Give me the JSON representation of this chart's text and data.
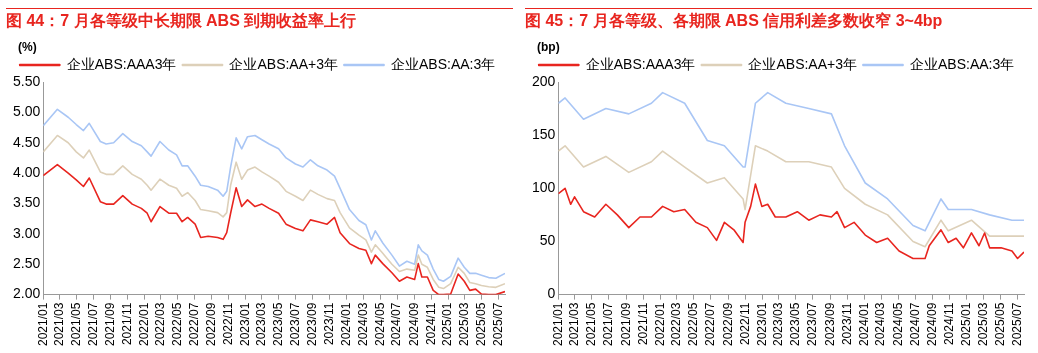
{
  "chart_data": [
    {
      "type": "line",
      "title": "图 44：7 月各等级中长期限 ABS 到期收益率上行",
      "ylabel": "(%)",
      "legend": "top",
      "grid": false,
      "marker": "none",
      "line_style": "solid",
      "x": [
        "2021-01-01",
        "2021-02-21",
        "2021-04-01",
        "2021-04-30",
        "2021-05-26",
        "2021-06-16",
        "2021-07-26",
        "2021-08-16",
        "2021-09-12",
        "2021-10-15",
        "2021-11-18",
        "2021-12-21",
        "2022-01-11",
        "2022-01-25",
        "2022-02-26",
        "2022-03-30",
        "2022-04-27",
        "2022-05-17",
        "2022-06-06",
        "2022-07-03",
        "2022-07-23",
        "2022-08-19",
        "2022-09-22",
        "2022-10-12",
        "2022-10-25",
        "2022-11-08",
        "2022-11-28",
        "2022-12-18",
        "2023-01-08",
        "2023-02-04",
        "2023-03-01",
        "2023-03-27",
        "2023-04-30",
        "2023-05-27",
        "2023-06-30",
        "2023-07-27",
        "2023-08-23",
        "2023-09-19",
        "2023-10-22",
        "2023-11-18",
        "2023-12-08",
        "2024-01-11",
        "2024-02-14",
        "2024-03-10",
        "2024-03-30",
        "2024-04-13",
        "2024-05-10",
        "2024-06-12",
        "2024-07-09",
        "2024-08-05",
        "2024-09-02",
        "2024-09-15",
        "2024-09-28",
        "2024-10-18",
        "2024-11-08",
        "2024-11-28",
        "2024-12-15",
        "2025-01-10",
        "2025-02-06",
        "2025-02-28",
        "2025-03-20",
        "2025-04-10",
        "2025-05-01",
        "2025-05-27",
        "2025-06-22",
        "2025-07-25"
      ],
      "series": [
        {
          "name": "企业ABS:AAA3年",
          "color": "#e8251f",
          "values": [
            3.96,
            4.14,
            4.0,
            3.89,
            3.78,
            3.92,
            3.53,
            3.49,
            3.49,
            3.63,
            3.49,
            3.42,
            3.34,
            3.2,
            3.45,
            3.34,
            3.34,
            3.2,
            3.27,
            3.16,
            2.94,
            2.96,
            2.94,
            2.91,
            3.02,
            3.34,
            3.76,
            3.45,
            3.56,
            3.45,
            3.49,
            3.42,
            3.34,
            3.16,
            3.09,
            3.05,
            3.23,
            3.2,
            3.16,
            3.27,
            3.02,
            2.84,
            2.76,
            2.73,
            2.51,
            2.65,
            2.51,
            2.36,
            2.22,
            2.29,
            2.25,
            2.51,
            2.29,
            2.29,
            2.07,
            2.0,
            2.0,
            2.01,
            2.34,
            2.22,
            2.07,
            2.09,
            2.01,
            2.0,
            2.0,
            2.05
          ]
        },
        {
          "name": "企业ABS:AA+3年",
          "color": "#ddd0b9",
          "values": [
            4.35,
            4.62,
            4.5,
            4.35,
            4.25,
            4.38,
            4.02,
            3.98,
            3.98,
            4.12,
            3.98,
            3.9,
            3.8,
            3.72,
            3.9,
            3.8,
            3.75,
            3.62,
            3.68,
            3.55,
            3.4,
            3.38,
            3.35,
            3.28,
            3.35,
            3.8,
            4.18,
            3.9,
            4.05,
            4.1,
            4.02,
            3.95,
            3.85,
            3.7,
            3.62,
            3.55,
            3.72,
            3.65,
            3.58,
            3.55,
            3.35,
            3.1,
            2.98,
            2.9,
            2.7,
            2.82,
            2.68,
            2.5,
            2.38,
            2.42,
            2.4,
            2.65,
            2.5,
            2.45,
            2.25,
            2.12,
            2.1,
            2.18,
            2.45,
            2.35,
            2.2,
            2.18,
            2.15,
            2.13,
            2.12,
            2.18
          ]
        },
        {
          "name": "企业ABS:AA:3年",
          "color": "#a9c6f5",
          "values": [
            4.78,
            5.05,
            4.92,
            4.8,
            4.7,
            4.82,
            4.52,
            4.48,
            4.5,
            4.65,
            4.52,
            4.45,
            4.35,
            4.28,
            4.52,
            4.38,
            4.3,
            4.12,
            4.12,
            3.95,
            3.8,
            3.78,
            3.72,
            3.62,
            3.7,
            4.1,
            4.58,
            4.4,
            4.6,
            4.62,
            4.55,
            4.48,
            4.4,
            4.25,
            4.15,
            4.1,
            4.22,
            4.12,
            4.05,
            3.95,
            3.75,
            3.4,
            3.22,
            3.15,
            2.9,
            3.05,
            2.85,
            2.65,
            2.47,
            2.55,
            2.5,
            2.82,
            2.72,
            2.65,
            2.42,
            2.25,
            2.22,
            2.3,
            2.6,
            2.45,
            2.35,
            2.35,
            2.32,
            2.28,
            2.27,
            2.35
          ]
        }
      ],
      "xlim": [
        "2021-01-01",
        "2025-07-25"
      ],
      "xticks": [
        {
          "value": "2021-01",
          "label": "2021/01"
        },
        {
          "value": "2021-03",
          "label": "2021/03"
        },
        {
          "value": "2021-05",
          "label": "2021/05"
        },
        {
          "value": "2021-07",
          "label": "2021/07"
        },
        {
          "value": "2021-09",
          "label": "2021/09"
        },
        {
          "value": "2021-11",
          "label": "2021/11"
        },
        {
          "value": "2022-01",
          "label": "2022/01"
        },
        {
          "value": "2022-03",
          "label": "2022/03"
        },
        {
          "value": "2022-05",
          "label": "2022/05"
        },
        {
          "value": "2022-07",
          "label": "2022/07"
        },
        {
          "value": "2022-09",
          "label": "2022/09"
        },
        {
          "value": "2022-11",
          "label": "2022/11"
        },
        {
          "value": "2023-01",
          "label": "2023/01"
        },
        {
          "value": "2023-03",
          "label": "2023/03"
        },
        {
          "value": "2023-05",
          "label": "2023/05"
        },
        {
          "value": "2023-07",
          "label": "2023/07"
        },
        {
          "value": "2023-09",
          "label": "2023/09"
        },
        {
          "value": "2023-11",
          "label": "2023/11"
        },
        {
          "value": "2024-01",
          "label": "2024/01"
        },
        {
          "value": "2024-03",
          "label": "2024/03"
        },
        {
          "value": "2024-05",
          "label": "2024/05"
        },
        {
          "value": "2024-07",
          "label": "2024/07"
        },
        {
          "value": "2024-09",
          "label": "2024/09"
        },
        {
          "value": "2024-11",
          "label": "2024/11"
        },
        {
          "value": "2025-01",
          "label": "2025/01"
        },
        {
          "value": "2025-03",
          "label": "2025/03"
        },
        {
          "value": "2025-05",
          "label": "2025/05"
        },
        {
          "value": "2025-07",
          "label": "2025/07"
        }
      ],
      "ylim": [
        2.0,
        5.5
      ],
      "yticks": [
        {
          "value": 2.0,
          "label": "2.00"
        },
        {
          "value": 2.5,
          "label": "2.50"
        },
        {
          "value": 3.0,
          "label": "3.00"
        },
        {
          "value": 3.5,
          "label": "3.50"
        },
        {
          "value": 4.0,
          "label": "4.00"
        },
        {
          "value": 4.5,
          "label": "4.50"
        },
        {
          "value": 5.0,
          "label": "5.00"
        },
        {
          "value": 5.5,
          "label": "5.50"
        }
      ]
    },
    {
      "type": "line",
      "title": "图 45：7 月各等级、各期限 ABS 信用利差多数收窄 3~4bp",
      "ylabel": "(bp)",
      "legend": "top",
      "grid": false,
      "marker": "none",
      "line_style": "solid",
      "series": [
        {
          "name": "企业ABS:AAA3年",
          "color": "#e8251f",
          "x": [
            "2021-01-01",
            "2021-01-25",
            "2021-02-14",
            "2021-02-28",
            "2021-04-01",
            "2021-05-11",
            "2021-06-20",
            "2021-07-31",
            "2021-09-10",
            "2021-10-20",
            "2021-11-30",
            "2022-01-09",
            "2022-02-18",
            "2022-03-29",
            "2022-05-08",
            "2022-06-18",
            "2022-07-21",
            "2022-08-18",
            "2022-09-21",
            "2022-10-24",
            "2022-10-31",
            "2022-11-20",
            "2022-12-07",
            "2022-12-30",
            "2023-01-20",
            "2023-02-16",
            "2023-03-26",
            "2023-05-06",
            "2023-06-16",
            "2023-07-26",
            "2023-09-05",
            "2023-09-25",
            "2023-10-22",
            "2023-11-25",
            "2024-01-04",
            "2024-02-14",
            "2024-03-24",
            "2024-05-04",
            "2024-06-23",
            "2024-08-05",
            "2024-08-20",
            "2024-10-01",
            "2024-10-27",
            "2024-11-24",
            "2024-12-20",
            "2025-01-18",
            "2025-02-14",
            "2025-03-06",
            "2025-03-24",
            "2025-05-04",
            "2025-06-12",
            "2025-07-02",
            "2025-07-25"
          ],
          "values": [
            95,
            100,
            85,
            92,
            78,
            73,
            85,
            75,
            63,
            73,
            73,
            83,
            78,
            80,
            68,
            63,
            51,
            68,
            61,
            49,
            68,
            83,
            104,
            83,
            85,
            73,
            73,
            78,
            70,
            75,
            73,
            78,
            63,
            68,
            56,
            49,
            53,
            41,
            34,
            34,
            46,
            61,
            49,
            53,
            44,
            58,
            46,
            58,
            44,
            44,
            41,
            34,
            40
          ]
        },
        {
          "name": "企业ABS:AA+3年",
          "color": "#ddd0b9",
          "x": [
            "2021-01-01",
            "2021-01-25",
            "2021-04-01",
            "2021-06-20",
            "2021-09-10",
            "2021-11-30",
            "2022-01-09",
            "2022-03-29",
            "2022-06-18",
            "2022-08-18",
            "2022-10-24",
            "2022-10-31",
            "2022-12-07",
            "2023-01-20",
            "2023-03-26",
            "2023-06-16",
            "2023-09-05",
            "2023-10-22",
            "2024-01-04",
            "2024-03-24",
            "2024-06-23",
            "2024-08-05",
            "2024-10-01",
            "2024-10-27",
            "2025-01-18",
            "2025-03-24",
            "2025-06-12",
            "2025-07-25"
          ],
          "values": [
            135,
            140,
            120,
            130,
            115,
            125,
            135,
            120,
            105,
            110,
            90,
            80,
            140,
            135,
            125,
            125,
            120,
            100,
            85,
            75,
            50,
            45,
            70,
            60,
            70,
            55,
            55,
            55
          ]
        },
        {
          "name": "企业ABS:AA:3年",
          "color": "#a9c6f5",
          "x": [
            "2021-01-01",
            "2021-01-25",
            "2021-04-01",
            "2021-06-20",
            "2021-09-10",
            "2021-11-30",
            "2022-01-09",
            "2022-03-29",
            "2022-06-18",
            "2022-08-18",
            "2022-10-24",
            "2022-10-31",
            "2022-12-07",
            "2023-01-20",
            "2023-03-26",
            "2023-06-16",
            "2023-09-05",
            "2023-10-22",
            "2024-01-04",
            "2024-03-24",
            "2024-06-23",
            "2024-08-05",
            "2024-10-01",
            "2024-10-27",
            "2025-01-18",
            "2025-03-24",
            "2025-06-12",
            "2025-07-25"
          ],
          "values": [
            180,
            185,
            165,
            175,
            170,
            180,
            190,
            180,
            145,
            140,
            120,
            120,
            180,
            190,
            180,
            175,
            170,
            140,
            105,
            90,
            65,
            60,
            90,
            80,
            80,
            75,
            70,
            70
          ]
        }
      ],
      "xlim": [
        "2021-01-01",
        "2025-07-25"
      ],
      "xticks": [
        {
          "value": "2021-01",
          "label": "2021/01"
        },
        {
          "value": "2021-03",
          "label": "2021/03"
        },
        {
          "value": "2021-05",
          "label": "2021/05"
        },
        {
          "value": "2021-07",
          "label": "2021/07"
        },
        {
          "value": "2021-09",
          "label": "2021/09"
        },
        {
          "value": "2021-11",
          "label": "2021/11"
        },
        {
          "value": "2022-01",
          "label": "2022/01"
        },
        {
          "value": "2022-03",
          "label": "2022/03"
        },
        {
          "value": "2022-05",
          "label": "2022/05"
        },
        {
          "value": "2022-07",
          "label": "2022/07"
        },
        {
          "value": "2022-09",
          "label": "2022/09"
        },
        {
          "value": "2022-11",
          "label": "2022/11"
        },
        {
          "value": "2023-01",
          "label": "2023/01"
        },
        {
          "value": "2023-03",
          "label": "2023/03"
        },
        {
          "value": "2023-05",
          "label": "2023/05"
        },
        {
          "value": "2023-07",
          "label": "2023/07"
        },
        {
          "value": "2023-09",
          "label": "2023/09"
        },
        {
          "value": "2023-11",
          "label": "2023/11"
        },
        {
          "value": "2024-01",
          "label": "2024/01"
        },
        {
          "value": "2024-03",
          "label": "2024/03"
        },
        {
          "value": "2024-05",
          "label": "2024/05"
        },
        {
          "value": "2024-07",
          "label": "2024/07"
        },
        {
          "value": "2024-09",
          "label": "2024/09"
        },
        {
          "value": "2024-11",
          "label": "2024/11"
        },
        {
          "value": "2025-01",
          "label": "2025/01"
        },
        {
          "value": "2025-03",
          "label": "2025/03"
        },
        {
          "value": "2025-05",
          "label": "2025/05"
        },
        {
          "value": "2025-07",
          "label": "2025/07"
        }
      ],
      "ylim": [
        0,
        200
      ],
      "yticks": [
        0,
        50,
        100,
        150,
        200
      ]
    }
  ]
}
